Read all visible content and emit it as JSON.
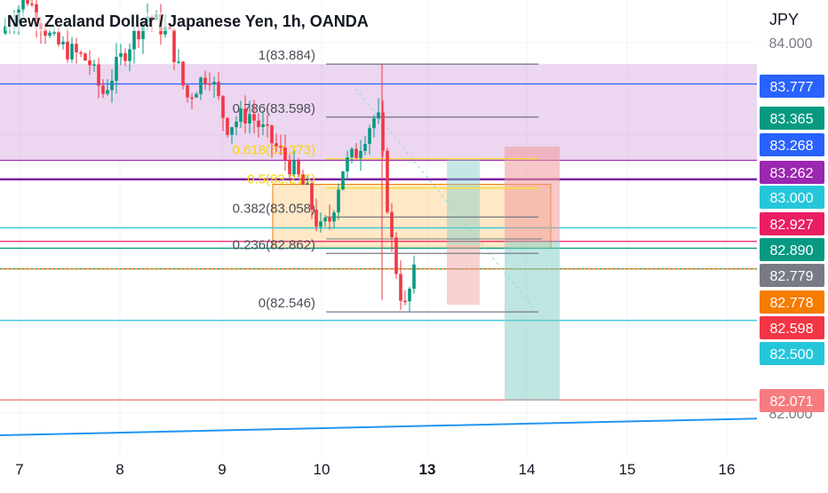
{
  "chart_title": "New Zealand Dollar / Japanese Yen, 1h, OANDA",
  "currency": "JPY",
  "chart_data": {
    "type": "candlestick",
    "symbol": "NZDJPY",
    "interval": "1h",
    "x_ticks": [
      "7",
      "8",
      "9",
      "10",
      "13",
      "14",
      "15",
      "16"
    ],
    "x_tick_bold": "13",
    "y_ticks": [
      84.0,
      82.0
    ],
    "y_tick_labels": [
      "84.000",
      "82.000"
    ],
    "ylim": [
      81.84,
      84.34
    ],
    "fib_levels": [
      {
        "label": "1(83.884)",
        "value": 83.884,
        "color": "#787b86"
      },
      {
        "label": "0.786(83.598)",
        "value": 83.598,
        "color": "#787b86"
      },
      {
        "label": "0.618(83.373)",
        "value": 83.373,
        "color": "#fbe22b"
      },
      {
        "label": "0.5(83.215)",
        "value": 83.215,
        "color": "#fbe22b"
      },
      {
        "label": "0.382(83.058)",
        "value": 83.058,
        "color": "#787b86"
      },
      {
        "label": "0.236(82.862)",
        "value": 82.862,
        "color": "#787b86"
      },
      {
        "label": "0(82.546)",
        "value": 82.546,
        "color": "#787b86"
      }
    ],
    "horizontal_lines": [
      {
        "value": 83.777,
        "color": "#2962ff"
      },
      {
        "value": 83.365,
        "color": "#9c27b0"
      },
      {
        "value": 83.262,
        "color": "#7b1fa2"
      },
      {
        "value": 83.0,
        "color": "#26c6da"
      },
      {
        "value": 82.927,
        "color": "#e91e63"
      },
      {
        "value": 82.89,
        "color": "#089981"
      },
      {
        "value": 82.778,
        "color": "#f57c00"
      },
      {
        "value": 82.5,
        "color": "#26c6da"
      },
      {
        "value": 82.071,
        "color": "#f77c80"
      }
    ],
    "price_labels": [
      {
        "text": "83.777",
        "value": 83.777,
        "color": "#2962ff"
      },
      {
        "text": "83.365",
        "value": 83.365,
        "color": "#089981"
      },
      {
        "text": "83.268",
        "value": 83.268,
        "color": "#2962ff"
      },
      {
        "text": "83.262",
        "value": 83.262,
        "color": "#9c27b0"
      },
      {
        "text": "83.000",
        "value": 83.0,
        "color": "#26c6da"
      },
      {
        "text": "82.927",
        "value": 82.927,
        "color": "#e91e63"
      },
      {
        "text": "82.890",
        "value": 82.89,
        "color": "#089981"
      },
      {
        "text": "82.779",
        "value": 82.779,
        "color": "#787b86"
      },
      {
        "text": "82.778",
        "value": 82.778,
        "color": "#f57c00"
      },
      {
        "text": "82.598",
        "value": 82.598,
        "color": "#f23645"
      },
      {
        "text": "82.500",
        "value": 82.5,
        "color": "#26c6da"
      },
      {
        "text": "82.071",
        "value": 82.071,
        "color": "#f77c80"
      }
    ],
    "zones": [
      {
        "name": "supply-zone",
        "from": 83.372,
        "to": 83.884,
        "color": "#ce93d8"
      },
      {
        "name": "golden-pocket-zone",
        "from": 82.89,
        "to": 83.235,
        "color": "#ffcc80"
      }
    ],
    "trend_line": {
      "from": 81.88,
      "to": 81.97,
      "color": "#2196f3"
    },
    "colors": {
      "up": "#089981",
      "down": "#f23645",
      "background": "#ffffff"
    }
  }
}
